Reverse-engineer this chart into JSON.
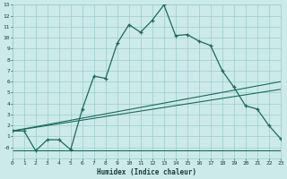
{
  "xlabel": "Humidex (Indice chaleur)",
  "bg_color": "#cceaea",
  "grid_color": "#99cccc",
  "line_color": "#1a6b5a",
  "xlim": [
    0,
    23
  ],
  "ylim": [
    -1,
    13
  ],
  "xticks": [
    0,
    1,
    2,
    3,
    4,
    5,
    6,
    7,
    8,
    9,
    10,
    11,
    12,
    13,
    14,
    15,
    16,
    17,
    18,
    19,
    20,
    21,
    22,
    23
  ],
  "yticks": [
    0,
    1,
    2,
    3,
    4,
    5,
    6,
    7,
    8,
    9,
    10,
    11,
    12,
    13
  ],
  "curve_x": [
    0,
    1,
    2,
    3,
    4,
    5,
    6,
    7,
    8,
    9,
    10,
    11,
    12,
    13,
    14,
    15,
    16,
    17,
    18,
    19,
    20,
    21,
    22,
    23
  ],
  "curve_y": [
    1.5,
    1.5,
    -0.3,
    0.7,
    0.7,
    -0.2,
    3.5,
    6.5,
    6.3,
    9.5,
    11.2,
    10.5,
    11.6,
    13.0,
    10.2,
    10.3,
    9.7,
    9.3,
    7.0,
    5.5,
    3.8,
    3.5,
    2.0,
    0.8
  ],
  "flat_line_y": [
    -0.3,
    -0.3
  ],
  "rise_line1_y": [
    1.5,
    6.0
  ],
  "rise_line2_y": [
    1.5,
    5.3
  ]
}
